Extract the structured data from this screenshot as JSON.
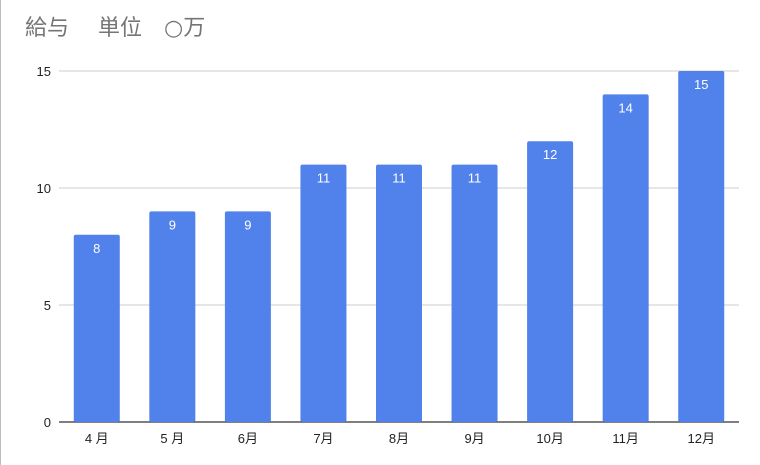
{
  "chart_data": {
    "type": "bar",
    "title": "給与　 単位　○万",
    "categories": [
      "4月",
      "5月",
      "6月",
      "7月",
      "8月",
      "9月",
      "10月",
      "11月",
      "12月"
    ],
    "x_tick_labels": [
      "4 月",
      "5 月",
      "6月",
      "7月",
      "8月",
      "9月",
      "10月",
      "11月",
      "12月"
    ],
    "values": [
      8,
      9,
      9,
      11,
      11,
      11,
      12,
      14,
      15
    ],
    "ylim": [
      0,
      15
    ],
    "y_ticks": [
      0,
      5,
      10,
      15
    ],
    "grid": true,
    "legend": "none",
    "data_labels": true
  },
  "colors": {
    "bar": "#5181ea",
    "gridline": "#cccccc",
    "axis": "#333333",
    "title": "#757575"
  }
}
